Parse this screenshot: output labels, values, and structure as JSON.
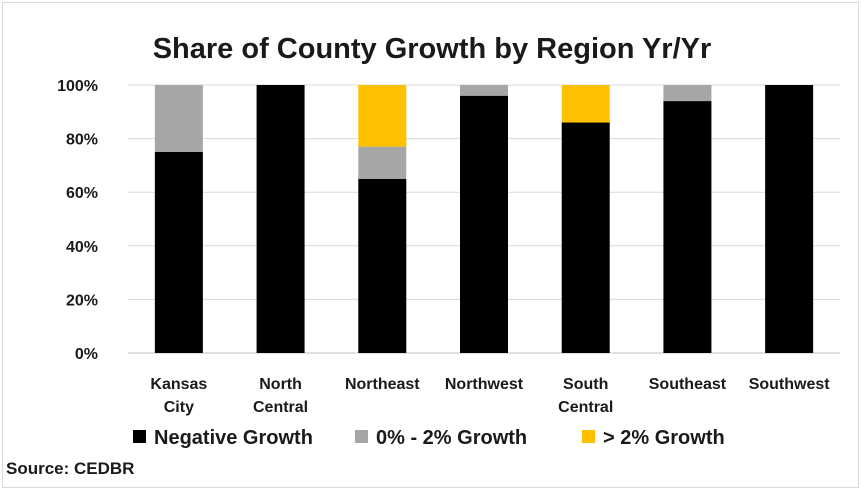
{
  "source_label": "Source: CEDBR",
  "colors": {
    "negative": "#000000",
    "low": "#a6a6a6",
    "high": "#ffc000",
    "grid": "#d9d9d9",
    "text": "#1a1a1a"
  },
  "chart_data": {
    "type": "bar",
    "stacked": true,
    "title": "Share of County Growth by Region Yr/Yr",
    "xlabel": "",
    "ylabel": "",
    "ylim": [
      0,
      100
    ],
    "y_ticks": [
      "0%",
      "20%",
      "40%",
      "60%",
      "80%",
      "100%"
    ],
    "grid": true,
    "legend_position": "bottom",
    "categories": [
      [
        "Kansas",
        "City"
      ],
      [
        "North",
        "Central"
      ],
      [
        "Northeast"
      ],
      [
        "Northwest"
      ],
      [
        "South",
        "Central"
      ],
      [
        "Southeast"
      ],
      [
        "Southwest"
      ]
    ],
    "series": [
      {
        "name": "Negative Growth",
        "color": "#000000",
        "values": [
          75,
          100,
          65,
          96,
          86,
          94,
          100
        ]
      },
      {
        "name": "0% - 2% Growth",
        "color": "#a6a6a6",
        "values": [
          25,
          0,
          12,
          4,
          0,
          6,
          0
        ]
      },
      {
        "name": "> 2% Growth",
        "color": "#ffc000",
        "values": [
          0,
          0,
          23,
          0,
          14,
          0,
          0
        ]
      }
    ]
  }
}
